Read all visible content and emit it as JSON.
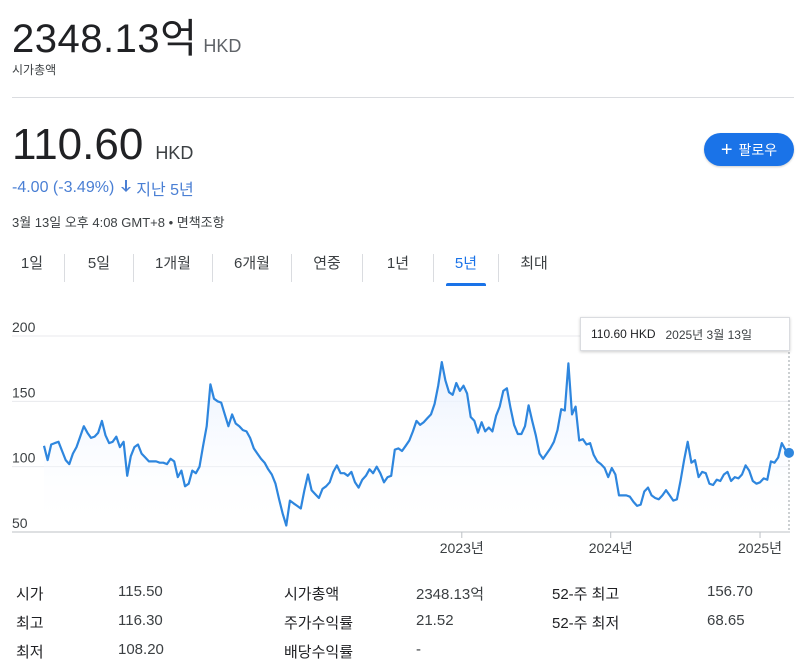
{
  "header": {
    "market_cap_value": "2348.13억",
    "market_cap_currency": "HKD",
    "market_cap_label": "시가총액"
  },
  "quote": {
    "price": "110.60",
    "currency": "HKD",
    "change": "-4.00 (-3.49%)",
    "period": "지난 5년",
    "timestamp": "3월 13일 오후 4:08 GMT+8",
    "separator": " • ",
    "disclaimer": "면책조항"
  },
  "follow_button": {
    "label": "팔로우"
  },
  "tabs": [
    {
      "label": "1일",
      "active": false
    },
    {
      "label": "5일",
      "active": false
    },
    {
      "label": "1개월",
      "active": false
    },
    {
      "label": "6개월",
      "active": false
    },
    {
      "label": "연중",
      "active": false
    },
    {
      "label": "1년",
      "active": false
    },
    {
      "label": "5년",
      "active": true
    },
    {
      "label": "최대",
      "active": false
    }
  ],
  "tooltip": {
    "price": "110.60 HKD",
    "date": "2025년 3월 13일"
  },
  "colors": {
    "accent": "#1a73e8",
    "line": "#2e86de",
    "change": "#4a7fd4"
  },
  "chart_data": {
    "type": "area",
    "x_start": "2020-03-13",
    "x_end": "2025-03-13",
    "ylim": [
      50,
      200
    ],
    "yticks": [
      200,
      150,
      100,
      50
    ],
    "xtick_labels": [
      {
        "label": "2023년",
        "date": "2023-01-01"
      },
      {
        "label": "2024년",
        "date": "2024-01-01"
      },
      {
        "label": "2025년",
        "date": "2025-01-01"
      }
    ],
    "values": [
      116,
      105,
      117,
      118,
      119,
      112,
      105,
      102,
      110,
      115,
      123,
      131,
      126,
      122,
      123,
      126,
      135,
      124,
      118,
      119,
      123,
      115,
      119,
      93,
      108,
      115,
      117,
      110,
      107,
      104,
      104,
      104,
      103,
      103,
      102,
      106,
      104,
      92,
      97,
      85,
      87,
      97,
      95,
      100,
      116,
      131,
      163,
      152,
      150,
      149,
      140,
      131,
      140,
      133,
      131,
      128,
      127,
      122,
      114,
      110,
      106,
      103,
      98,
      94,
      87,
      75,
      64,
      55,
      74,
      72,
      70,
      68,
      82,
      94,
      82,
      79,
      76,
      83,
      85,
      88,
      96,
      101,
      95,
      95,
      93,
      96,
      88,
      84,
      90,
      93,
      98,
      95,
      100,
      95,
      88,
      92,
      93,
      113,
      114,
      112,
      116,
      120,
      127,
      135,
      132,
      134,
      137,
      140,
      148,
      162,
      180,
      166,
      157,
      155,
      164,
      158,
      162,
      156,
      138,
      135,
      126,
      134,
      127,
      130,
      127,
      139,
      146,
      158,
      160,
      145,
      132,
      125,
      125,
      131,
      147,
      135,
      124,
      110,
      106,
      110,
      114,
      119,
      128,
      144,
      143,
      179,
      140,
      146,
      120,
      121,
      117,
      118,
      109,
      104,
      102,
      99,
      92,
      99,
      94,
      78,
      78,
      78,
      77,
      73,
      70,
      71,
      81,
      84,
      78,
      76,
      75,
      78,
      82,
      78,
      74,
      75,
      89,
      105,
      119,
      103,
      105,
      92,
      96,
      95,
      87,
      86,
      90,
      89,
      94,
      96,
      89,
      92,
      91,
      94,
      101,
      97,
      89,
      87,
      88,
      91,
      90,
      104,
      103,
      107,
      118,
      113,
      110.6
    ]
  },
  "stats": {
    "col1": [
      {
        "label": "시가",
        "value": "115.50"
      },
      {
        "label": "최고",
        "value": "116.30"
      },
      {
        "label": "최저",
        "value": "108.20"
      }
    ],
    "col2": [
      {
        "label": "시가총액",
        "value": "2348.13억"
      },
      {
        "label": "주가수익률",
        "value": "21.52"
      },
      {
        "label": "배당수익률",
        "value": "-"
      }
    ],
    "col3": [
      {
        "label": "52-주 최고",
        "value": "156.70"
      },
      {
        "label": "52-주 최저",
        "value": "68.65"
      }
    ]
  }
}
